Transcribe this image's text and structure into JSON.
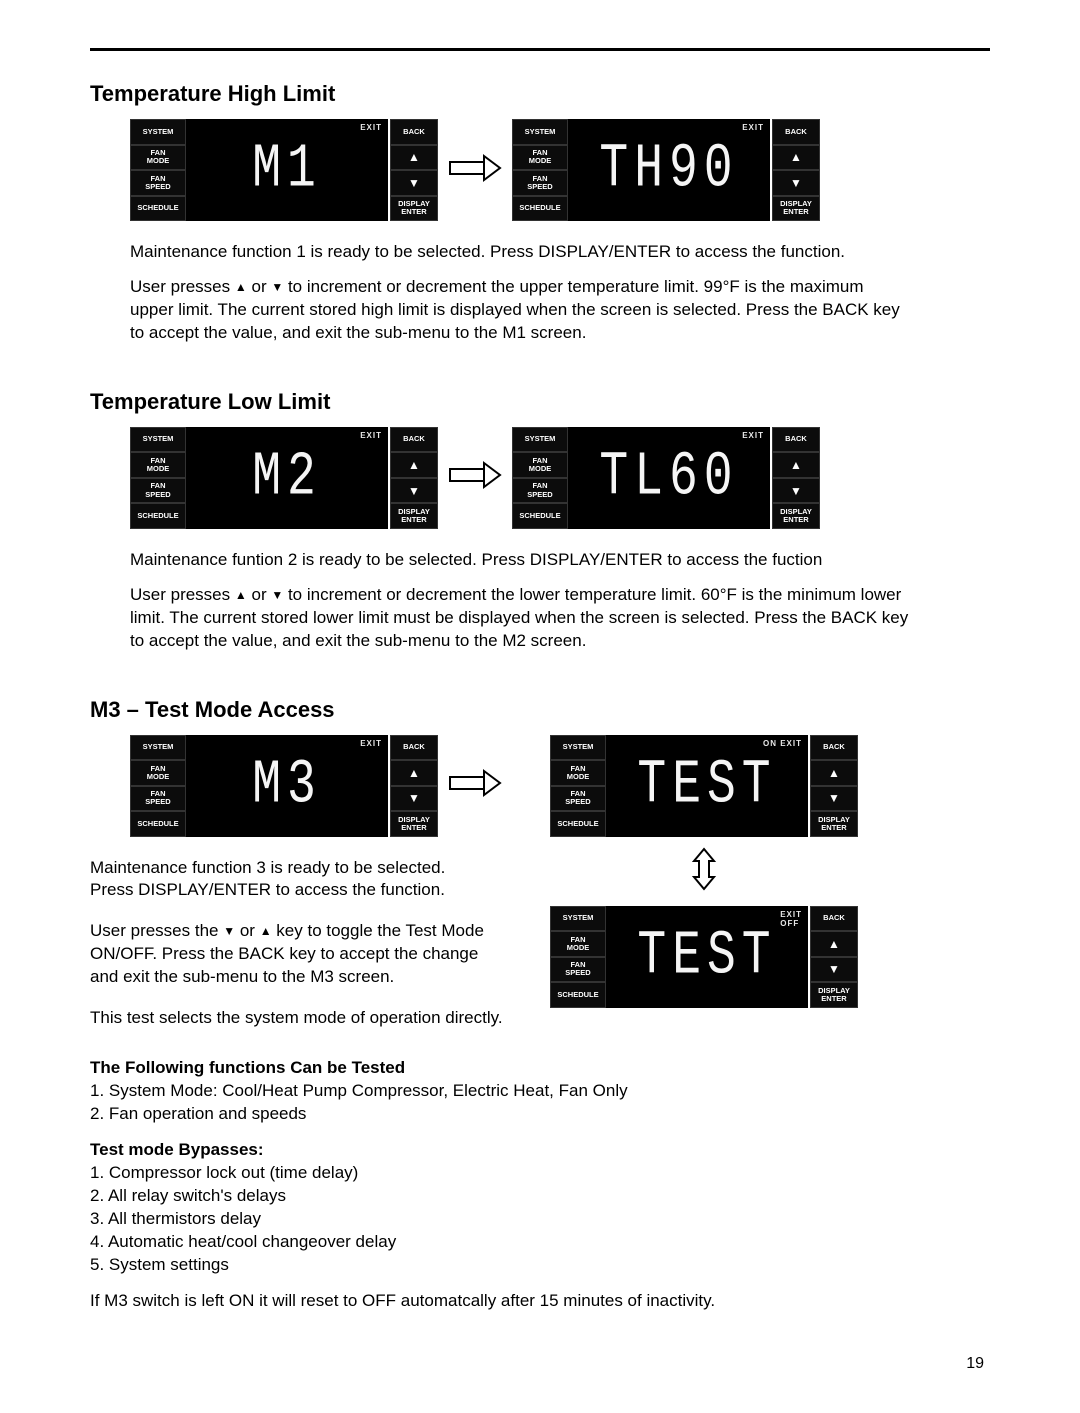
{
  "page_number": "19",
  "sections": {
    "high": {
      "heading": "Temperature High Limit",
      "screen1": {
        "left": [
          "SYSTEM",
          "FAN\nMODE",
          "FAN\nSPEED",
          "SCHEDULE"
        ],
        "status": "EXIT",
        "seg": "M1",
        "right": [
          "BACK",
          "▲",
          "▼",
          "DISPLAY\nENTER"
        ]
      },
      "screen2": {
        "left": [
          "SYSTEM",
          "FAN\nMODE",
          "FAN\nSPEED",
          "SCHEDULE"
        ],
        "status": "EXIT",
        "seg": "TH90",
        "right": [
          "BACK",
          "▲",
          "▼",
          "DISPLAY\nENTER"
        ]
      },
      "p1": "Maintenance function 1 is ready to be selected. Press DISPLAY/ENTER to access the function.",
      "p2_pre": "User presses ",
      "p2_mid": " or ",
      "p2_post": " to increment or decrement the upper temperature limit. 99°F is the maximum upper limit. The current stored high limit is displayed when the screen is selected. Press the BACK key to accept the value, and exit the sub-menu to the M1 screen."
    },
    "low": {
      "heading": "Temperature Low Limit",
      "screen1": {
        "left": [
          "SYSTEM",
          "FAN\nMODE",
          "FAN\nSPEED",
          "SCHEDULE"
        ],
        "status": "EXIT",
        "seg": "M2",
        "right": [
          "BACK",
          "▲",
          "▼",
          "DISPLAY\nENTER"
        ]
      },
      "screen2": {
        "left": [
          "SYSTEM",
          "FAN\nMODE",
          "FAN\nSPEED",
          "SCHEDULE"
        ],
        "status": "EXIT",
        "seg": "TL60",
        "right": [
          "BACK",
          "▲",
          "▼",
          "DISPLAY\nENTER"
        ]
      },
      "p1": "Maintenance funtion 2 is ready to be selected. Press DISPLAY/ENTER to access the fuction",
      "p2_pre": "User presses ",
      "p2_mid": " or ",
      "p2_post": " to increment or decrement the lower temperature limit. 60°F is the minimum lower limit. The current stored lower limit must be displayed when the screen is selected. Press the BACK key to accept the value, and exit the sub-menu to the M2 screen."
    },
    "m3": {
      "heading": "M3 – Test Mode Access",
      "screenA": {
        "left": [
          "SYSTEM",
          "FAN\nMODE",
          "FAN\nSPEED",
          "SCHEDULE"
        ],
        "status": "EXIT",
        "seg": "M3",
        "right": [
          "BACK",
          "▲",
          "▼",
          "DISPLAY\nENTER"
        ]
      },
      "screenB": {
        "left": [
          "SYSTEM",
          "FAN\nMODE",
          "FAN\nSPEED",
          "SCHEDULE"
        ],
        "status": "ON   EXIT",
        "seg": "TEST",
        "right": [
          "BACK",
          "▲",
          "▼",
          "DISPLAY\nENTER"
        ]
      },
      "screenC": {
        "left": [
          "SYSTEM",
          "FAN\nMODE",
          "FAN\nSPEED",
          "SCHEDULE"
        ],
        "status": "EXIT\nOFF",
        "seg": "TEST",
        "right": [
          "BACK",
          "▲",
          "▼",
          "DISPLAY\nENTER"
        ]
      },
      "p1": "Maintenance function 3 is ready to be selected. Press DISPLAY/ENTER to access the function.",
      "p2_pre": "User presses the ",
      "p2_mid": " or ",
      "p2_post": " key to toggle the Test Mode ON/OFF. Press the BACK key to accept the change and exit the sub-menu to the M3 screen.",
      "p3": "This test selects the system mode of operation directly.",
      "funcs_head": "The Following functions Can be Tested",
      "funcs": [
        "1. System Mode: Cool/Heat Pump Compressor, Electric Heat, Fan Only",
        "2. Fan operation and speeds"
      ],
      "bypass_head": "Test mode Bypasses:",
      "bypass": [
        "1. Compressor lock out (time delay)",
        "2. All relay switch's delays",
        "3. All thermistors delay",
        "4. Automatic heat/cool changeover delay",
        "5. System settings"
      ],
      "p4": "If M3 switch is left ON it will reset to OFF automatcally after 15 minutes of inactivity."
    }
  }
}
